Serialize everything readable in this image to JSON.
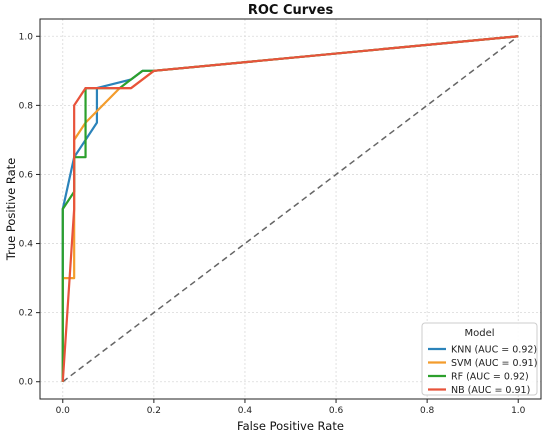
{
  "chart_data": {
    "type": "line",
    "title": "ROC Curves",
    "xlabel": "False Positive Rate",
    "ylabel": "True Positive Rate",
    "xlim": [
      0,
      1
    ],
    "ylim": [
      0,
      1
    ],
    "xticks": [
      "0.0",
      "0.2",
      "0.4",
      "0.6",
      "0.8",
      "1.0"
    ],
    "yticks": [
      "0.0",
      "0.2",
      "0.4",
      "0.6",
      "0.8",
      "1.0"
    ],
    "grid": true,
    "legend": {
      "title": "Model",
      "placement": "lower-right"
    },
    "diagonal": {
      "x": [
        0,
        1
      ],
      "y": [
        0,
        1
      ],
      "style": "dashed",
      "color": "#666666"
    },
    "series": [
      {
        "name": "KNN (AUC = 0.92)",
        "color": "#2b83ba",
        "x": [
          0,
          0,
          0.025,
          0.075,
          0.075,
          0.15,
          0.175,
          0.2,
          1
        ],
        "y": [
          0,
          0.5,
          0.65,
          0.75,
          0.85,
          0.875,
          0.9,
          0.9,
          1
        ]
      },
      {
        "name": "SVM (AUC = 0.91)",
        "color": "#f39c2c",
        "x": [
          0,
          0,
          0.025,
          0.025,
          0.05,
          0.125,
          0.15,
          0.2,
          1
        ],
        "y": [
          0,
          0.3,
          0.3,
          0.7,
          0.75,
          0.85,
          0.85,
          0.9,
          1
        ]
      },
      {
        "name": "RF (AUC = 0.92)",
        "color": "#2ca02c",
        "x": [
          0,
          0,
          0.025,
          0.025,
          0.05,
          0.05,
          0.125,
          0.175,
          0.2,
          1
        ],
        "y": [
          0,
          0.5,
          0.55,
          0.65,
          0.65,
          0.85,
          0.85,
          0.9,
          0.9,
          1
        ]
      },
      {
        "name": "NB (AUC = 0.91)",
        "color": "#e8533b",
        "x": [
          0,
          0.025,
          0.025,
          0.05,
          0.15,
          0.2,
          1
        ],
        "y": [
          0,
          0.5,
          0.8,
          0.85,
          0.85,
          0.9,
          1
        ]
      }
    ]
  }
}
